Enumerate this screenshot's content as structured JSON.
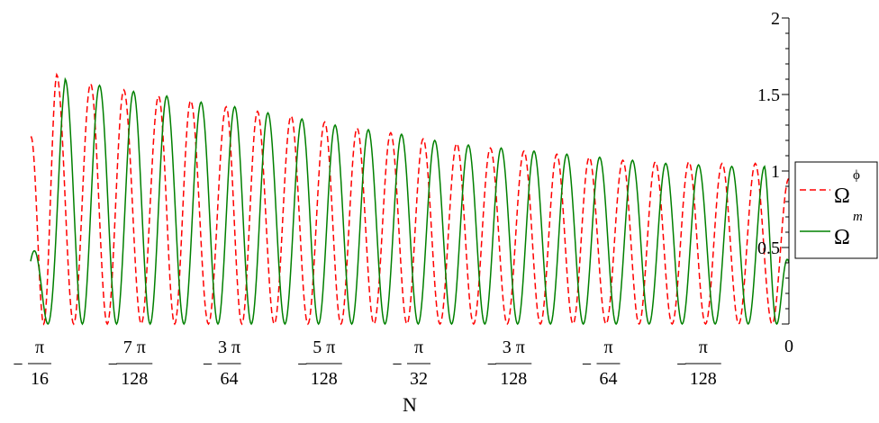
{
  "chart_data": {
    "type": "line",
    "xlabel": "N",
    "ylabel": "",
    "xlim": [
      -0.19634954,
      0
    ],
    "ylim": [
      0,
      2
    ],
    "grid": false,
    "legend_position": "right",
    "x_ticks": [
      {
        "value": -0.19634954,
        "label": "π",
        "den": "16",
        "sign": "−"
      },
      {
        "value": -0.17180585,
        "label": "7 π",
        "den": "128",
        "sign": "−"
      },
      {
        "value": -0.14726216,
        "label": "3 π",
        "den": "64",
        "sign": "−"
      },
      {
        "value": -0.12271846,
        "label": "5 π",
        "den": "128",
        "sign": "−"
      },
      {
        "value": -0.09817477,
        "label": "π",
        "den": "32",
        "sign": "−"
      },
      {
        "value": -0.07363108,
        "label": "3 π",
        "den": "128",
        "sign": "−"
      },
      {
        "value": -0.04908739,
        "label": "π",
        "den": "64",
        "sign": "−"
      },
      {
        "value": -0.02454369,
        "label": "π",
        "den": "128",
        "sign": "−"
      },
      {
        "value": 0,
        "label": "0",
        "den": "",
        "sign": ""
      }
    ],
    "y_ticks": [
      {
        "value": 0.5,
        "label": "0.5"
      },
      {
        "value": 1,
        "label": "1"
      },
      {
        "value": 1.5,
        "label": "1.5"
      },
      {
        "value": 2,
        "label": "2"
      }
    ],
    "series": [
      {
        "name": "Ω",
        "superscript": "ϕ",
        "color": "#ff0000",
        "dash": "dashed",
        "x": [
          -0.19634954,
          -0.1896,
          -0.1808,
          -0.1722,
          -0.1632,
          -0.1549,
          -0.1457,
          -0.1376,
          -0.1289,
          -0.1202,
          -0.1118,
          -0.1031,
          -0.0947,
          -0.086,
          -0.0773,
          -0.0686,
          -0.0601,
          -0.0517,
          -0.043,
          -0.0346,
          -0.0259,
          -0.0173,
          -0.0087,
          0
        ],
        "peaks": [
          1.22,
          1.63,
          1.57,
          1.53,
          1.49,
          1.46,
          1.42,
          1.39,
          1.36,
          1.32,
          1.28,
          1.25,
          1.21,
          1.18,
          1.15,
          1.13,
          1.11,
          1.09,
          1.07,
          1.06,
          1.06,
          1.05,
          1.05,
          0.95
        ],
        "min": 0
      },
      {
        "name": "Ω",
        "superscript": "m",
        "color": "#008000",
        "dash": "solid",
        "x": [
          -0.19634954,
          -0.1874,
          -0.1785,
          -0.1697,
          -0.1611,
          -0.1522,
          -0.1435,
          -0.1349,
          -0.1261,
          -0.1175,
          -0.1089,
          -0.1003,
          -0.0917,
          -0.083,
          -0.0745,
          -0.066,
          -0.0575,
          -0.049,
          -0.0405,
          -0.0319,
          -0.0234,
          -0.0148,
          -0.0063,
          0
        ],
        "peaks": [
          0.41,
          1.6,
          1.56,
          1.52,
          1.49,
          1.45,
          1.42,
          1.38,
          1.34,
          1.3,
          1.27,
          1.24,
          1.2,
          1.17,
          1.15,
          1.13,
          1.11,
          1.09,
          1.07,
          1.05,
          1.04,
          1.03,
          1.03,
          0.4
        ],
        "min": 0
      }
    ]
  }
}
